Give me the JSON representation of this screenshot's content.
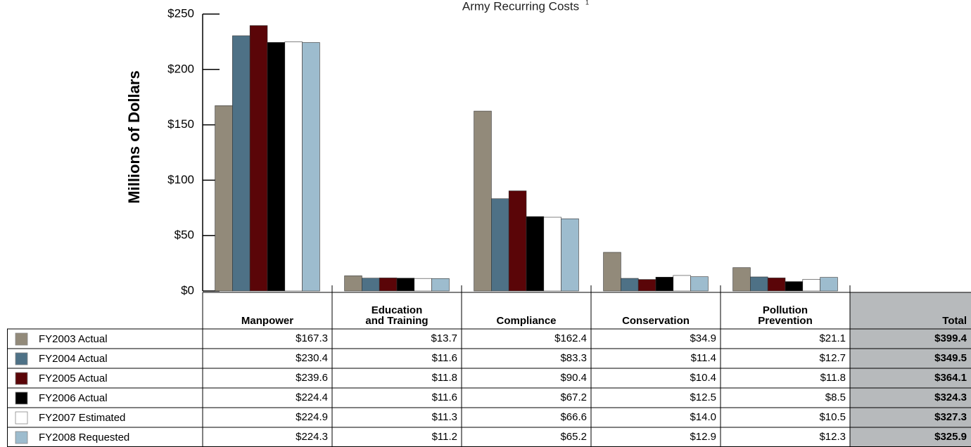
{
  "chart_data": {
    "type": "bar",
    "subtitle": "Army Recurring Costs",
    "subtitle_footnote": "1",
    "y_label": "Millions of Dollars",
    "categories": [
      "Manpower",
      "Education\nand Training",
      "Compliance",
      "Conservation",
      "Pollution\nPrevention"
    ],
    "ylim": [
      0,
      250
    ],
    "yticks": [
      {
        "value": 0,
        "label": "$0"
      },
      {
        "value": 50,
        "label": "$50"
      },
      {
        "value": 100,
        "label": "$100"
      },
      {
        "value": 150,
        "label": "$150"
      },
      {
        "value": 200,
        "label": "$200"
      },
      {
        "value": 250,
        "label": "$250"
      }
    ],
    "series": [
      {
        "name": "FY2003 Actual",
        "color": "#928a7a",
        "values": [
          167.3,
          13.7,
          162.4,
          34.9,
          21.1
        ],
        "value_labels": [
          "$167.3",
          "$13.7",
          "$162.4",
          "$34.9",
          "$21.1"
        ]
      },
      {
        "name": "FY2004 Actual",
        "color": "#4e7186",
        "values": [
          230.4,
          11.6,
          83.3,
          11.4,
          12.7
        ],
        "value_labels": [
          "$230.4",
          "$11.6",
          "$83.3",
          "$11.4",
          "$12.7"
        ]
      },
      {
        "name": "FY2005 Actual",
        "color": "#5a0508",
        "values": [
          239.6,
          11.8,
          90.4,
          10.4,
          11.8
        ],
        "value_labels": [
          "$239.6",
          "$11.8",
          "$90.4",
          "$10.4",
          "$11.8"
        ]
      },
      {
        "name": "FY2006 Actual",
        "color": "#000000",
        "values": [
          224.4,
          11.6,
          67.2,
          12.5,
          8.5
        ],
        "value_labels": [
          "$224.4",
          "$11.6",
          "$67.2",
          "$12.5",
          "$8.5"
        ]
      },
      {
        "name": "FY2007 Estimated",
        "color": "#ffffff",
        "values": [
          224.9,
          11.3,
          66.6,
          14.0,
          10.5
        ],
        "value_labels": [
          "$224.9",
          "$11.3",
          "$66.6",
          "$14.0",
          "$10.5"
        ]
      },
      {
        "name": "FY2008 Requested",
        "color": "#9dbcce",
        "values": [
          224.3,
          11.2,
          65.2,
          12.9,
          12.3
        ],
        "value_labels": [
          "$224.3",
          "$11.2",
          "$65.2",
          "$12.9",
          "$12.3"
        ]
      }
    ],
    "total": {
      "header": "Total",
      "values": [
        399.4,
        349.5,
        364.1,
        324.3,
        327.3,
        325.9
      ],
      "value_labels": [
        "$399.4",
        "$349.5",
        "$364.1",
        "$324.3",
        "$327.3",
        "$325.9"
      ]
    }
  }
}
